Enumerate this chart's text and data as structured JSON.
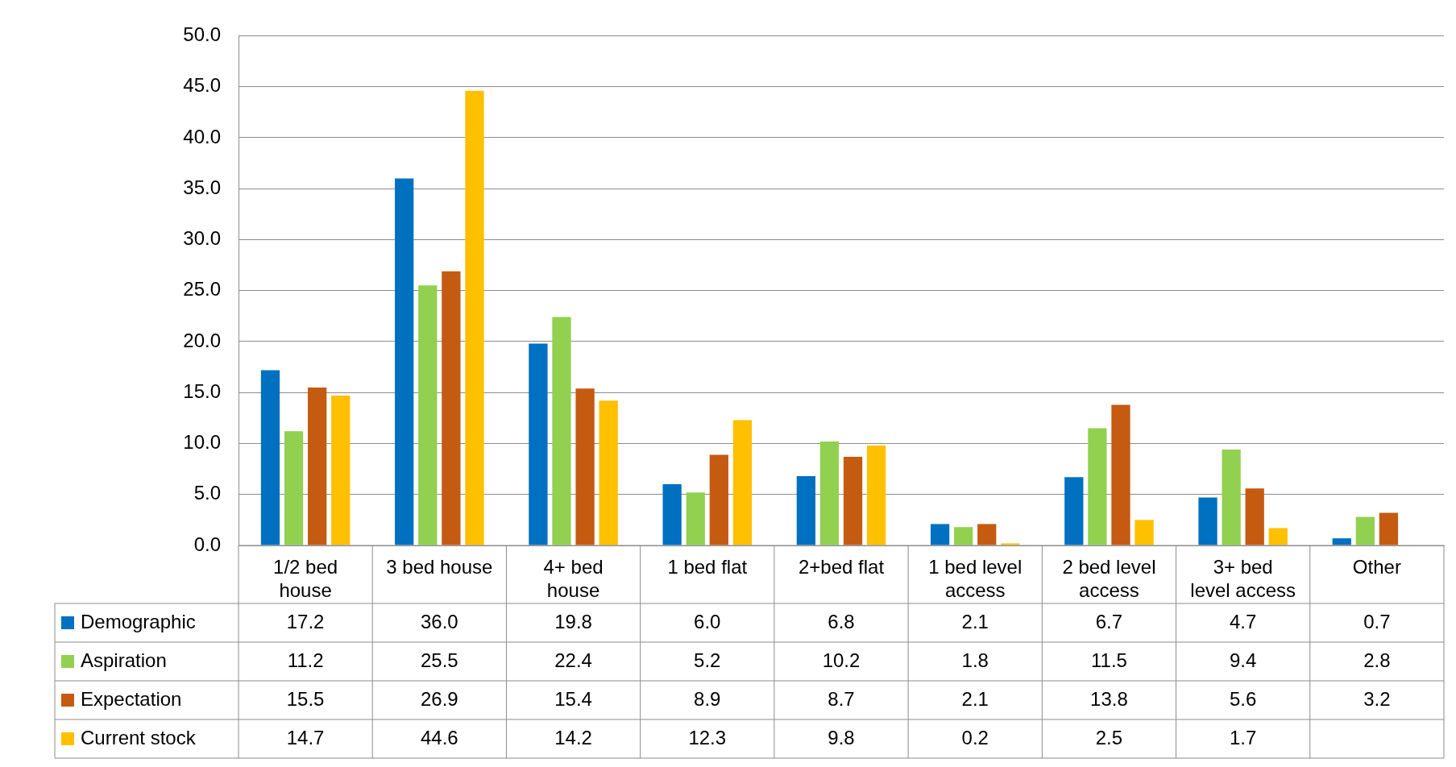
{
  "chart_data": {
    "type": "bar",
    "categories": [
      "1/2 bed house",
      "3 bed house",
      "4+ bed house",
      "1 bed flat",
      "2+bed flat",
      "1 bed level access",
      "2 bed level access",
      "3+ bed level access",
      "Other"
    ],
    "series": [
      {
        "name": "Demographic",
        "color": "#0070c0",
        "values": [
          17.2,
          36.0,
          19.8,
          6.0,
          6.8,
          2.1,
          6.7,
          4.7,
          0.7
        ],
        "value_labels": [
          "17.2",
          "36.0",
          "19.8",
          "6.0",
          "6.8",
          "2.1",
          "6.7",
          "4.7",
          "0.7"
        ]
      },
      {
        "name": "Aspiration",
        "color": "#92d050",
        "values": [
          11.2,
          25.5,
          22.4,
          5.2,
          10.2,
          1.8,
          11.5,
          9.4,
          2.8
        ],
        "value_labels": [
          "11.2",
          "25.5",
          "22.4",
          "5.2",
          "10.2",
          "1.8",
          "11.5",
          "9.4",
          "2.8"
        ]
      },
      {
        "name": "Expectation",
        "color": "#c55a11",
        "values": [
          15.5,
          26.9,
          15.4,
          8.9,
          8.7,
          2.1,
          13.8,
          5.6,
          3.2
        ],
        "value_labels": [
          "15.5",
          "26.9",
          "15.4",
          "8.9",
          "8.7",
          "2.1",
          "13.8",
          "5.6",
          "3.2"
        ]
      },
      {
        "name": "Current stock",
        "color": "#ffc000",
        "values": [
          14.7,
          44.6,
          14.2,
          12.3,
          9.8,
          0.2,
          2.5,
          1.7,
          null
        ],
        "value_labels": [
          "14.7",
          "44.6",
          "14.2",
          "12.3",
          "9.8",
          "0.2",
          "2.5",
          "1.7",
          null
        ]
      }
    ],
    "ylim": [
      0,
      50
    ],
    "yticks": [
      {
        "value": 0,
        "label": "0.0"
      },
      {
        "value": 5,
        "label": "5.0"
      },
      {
        "value": 10,
        "label": "10.0"
      },
      {
        "value": 15,
        "label": "15.0"
      },
      {
        "value": 20,
        "label": "20.0"
      },
      {
        "value": 25,
        "label": "25.0"
      },
      {
        "value": 30,
        "label": "30.0"
      },
      {
        "value": 35,
        "label": "35.0"
      },
      {
        "value": 40,
        "label": "40.0"
      },
      {
        "value": 45,
        "label": "45.0"
      },
      {
        "value": 50,
        "label": "50.0"
      }
    ],
    "grid": "y",
    "legend": "bottom"
  }
}
